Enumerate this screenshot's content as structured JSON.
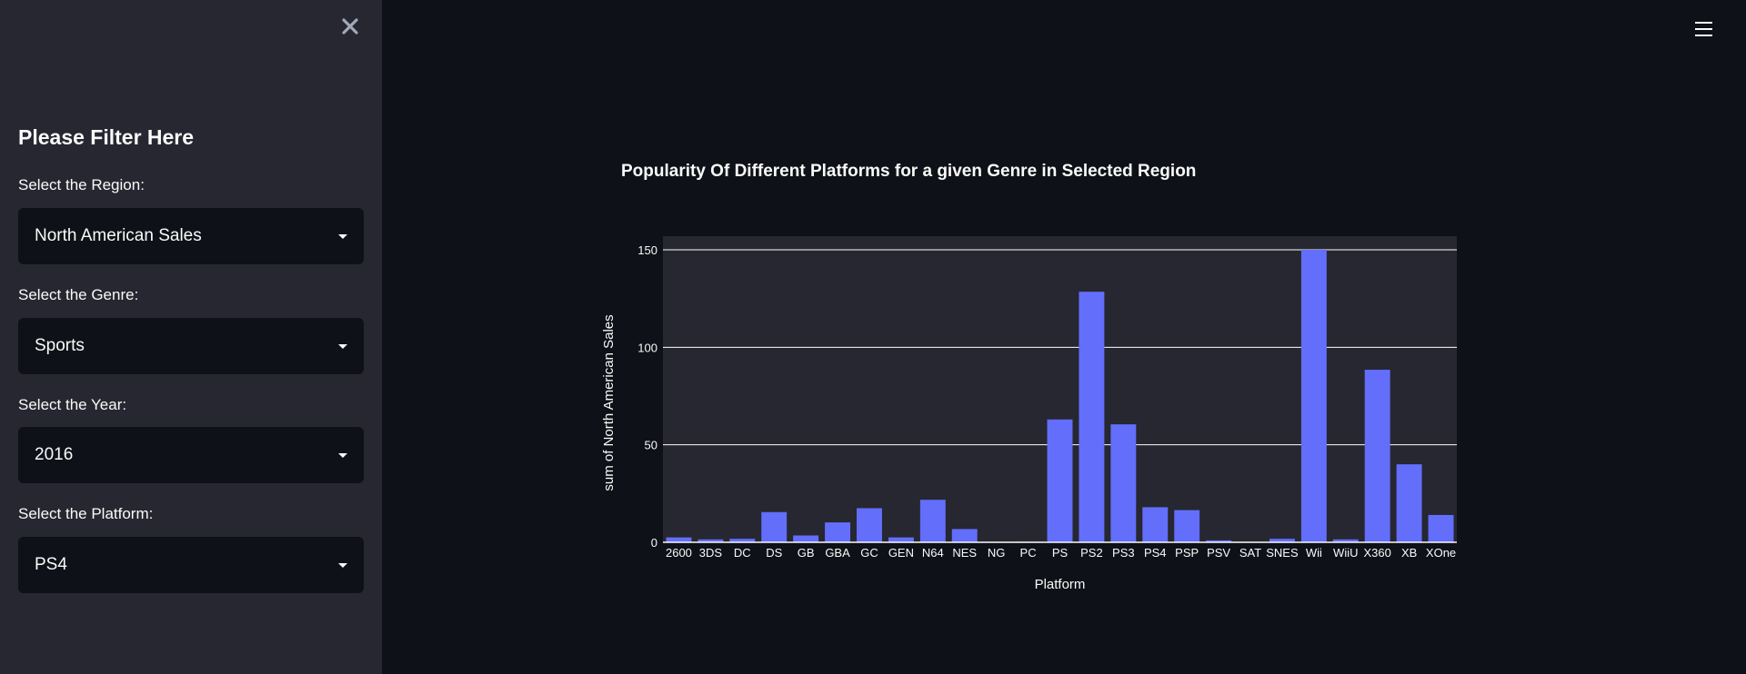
{
  "sidebar": {
    "close_label": "✕",
    "title": "Please Filter Here",
    "filters": [
      {
        "label": "Select the Region:",
        "value": "North American Sales"
      },
      {
        "label": "Select the Genre:",
        "value": "Sports"
      },
      {
        "label": "Select the Year:",
        "value": "2016"
      },
      {
        "label": "Select the Platform:",
        "value": "PS4"
      }
    ]
  },
  "header": {
    "menu_icon": "hamburger-menu-icon"
  },
  "colors": {
    "bar": "#636efa",
    "plot_bg": "#262730",
    "page_bg": "#0e1117",
    "sidebar_bg": "#262730",
    "grid": "#ffffff"
  },
  "chart_data": {
    "type": "bar",
    "title": "Popularity Of Different Platforms for a given Genre in Selected Region",
    "xlabel": "Platform",
    "ylabel": "sum of North American Sales",
    "ylim": [
      0,
      157
    ],
    "yticks": [
      0,
      50,
      100,
      150
    ],
    "grid": true,
    "categories": [
      "2600",
      "3DS",
      "DC",
      "DS",
      "GB",
      "GBA",
      "GC",
      "GEN",
      "N64",
      "NES",
      "NG",
      "PC",
      "PS",
      "PS2",
      "PS3",
      "PS4",
      "PSP",
      "PSV",
      "SAT",
      "SNES",
      "Wii",
      "WiiU",
      "X360",
      "XB",
      "XOne"
    ],
    "values": [
      2.5,
      1.5,
      1.8,
      15.5,
      3.5,
      10.2,
      17.5,
      2.5,
      21.8,
      6.8,
      0,
      0.3,
      63,
      128.5,
      60.5,
      18,
      16.5,
      1,
      0.2,
      1.8,
      150,
      1.5,
      88.5,
      40,
      14
    ]
  }
}
